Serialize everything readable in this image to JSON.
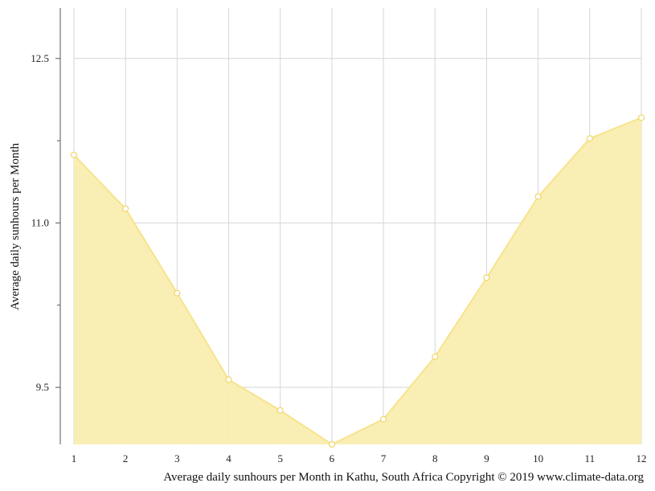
{
  "chart_data": {
    "type": "area",
    "x": [
      1,
      2,
      3,
      4,
      5,
      6,
      7,
      8,
      9,
      10,
      11,
      12
    ],
    "x_tick_labels": [
      "1",
      "2",
      "3",
      "4",
      "5",
      "6",
      "7",
      "8",
      "9",
      "10",
      "11",
      "12"
    ],
    "y": [
      11.62,
      11.13,
      10.36,
      9.57,
      9.29,
      8.98,
      9.21,
      9.78,
      10.5,
      11.24,
      11.77,
      11.96
    ],
    "ylabel": "Average daily sunhours per Month",
    "caption": "Average daily sunhours per Month in Kathu, South Africa Copyright © 2019 www.climate-data.org",
    "y_ticks": [
      9.5,
      11.0,
      12.5
    ],
    "y_tick_labels": [
      "9.5",
      "11.0",
      "12.5"
    ],
    "y_minor_ticks": [
      10.25,
      11.75
    ],
    "ylim": [
      8.98,
      12.96
    ],
    "xlim": [
      1,
      12
    ],
    "grid": true,
    "colors": {
      "fill": "#f9eeb0",
      "line": "#f8e38c",
      "marker_edge": "#f0d66a",
      "marker_fill": "#ffffff",
      "grid": "#d6d6d6",
      "axis": "#555555"
    }
  }
}
